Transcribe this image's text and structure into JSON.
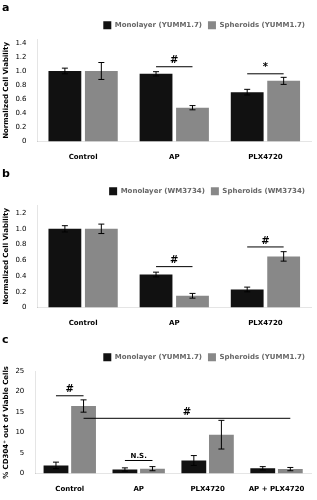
{
  "chart_data": [
    {
      "type": "bar",
      "title": "a",
      "categories": [
        "Control",
        "AP",
        "PLX4720"
      ],
      "series": [
        {
          "name": "Monolayer (YUMM1.7)",
          "color": "#111111",
          "values": [
            1.0,
            0.96,
            0.7
          ],
          "errors": [
            0.04,
            0.03,
            0.04
          ]
        },
        {
          "name": "Spheroids (YUMM1.7)",
          "color": "#888888",
          "values": [
            1.0,
            0.48,
            0.86
          ],
          "errors": [
            0.12,
            0.03,
            0.05
          ]
        }
      ],
      "ylabel": "Normalized Cell Viability",
      "ylim": [
        0,
        1.45
      ],
      "yticks": [
        0,
        0.2,
        0.4,
        0.6,
        0.8,
        {
          "value": 1.0,
          "label": "1.0"
        },
        1.2,
        1.4
      ],
      "grid": false,
      "legend": "upper right",
      "annotations": [
        {
          "text": "#",
          "category": "AP",
          "y": 1.06
        },
        {
          "text": "*",
          "category": "PLX4720",
          "y": 0.96
        }
      ]
    },
    {
      "type": "bar",
      "title": "b",
      "categories": [
        "Control",
        "AP",
        "PLX4720"
      ],
      "series": [
        {
          "name": "Monolayer (WM3734)",
          "color": "#111111",
          "values": [
            1.0,
            0.42,
            0.23
          ],
          "errors": [
            0.04,
            0.03,
            0.03
          ]
        },
        {
          "name": "Spheroids (WM3734)",
          "color": "#888888",
          "values": [
            1.0,
            0.15,
            0.65
          ],
          "errors": [
            0.06,
            0.03,
            0.06
          ]
        }
      ],
      "ylabel": "Normalized Cell Viability",
      "ylim": [
        0,
        1.3
      ],
      "yticks": [
        0,
        0.2,
        0.4,
        0.6,
        0.8,
        {
          "value": 1.0,
          "label": "1.0"
        },
        1.2
      ],
      "grid": false,
      "legend": "upper right",
      "annotations": [
        {
          "text": "#",
          "category": "AP",
          "y": 0.52
        },
        {
          "text": "#",
          "category": "PLX4720",
          "y": 0.77
        }
      ]
    },
    {
      "type": "bar",
      "title": "c",
      "categories": [
        "Control",
        "AP",
        "PLX4720",
        "AP + PLX4720"
      ],
      "series": [
        {
          "name": "Monolayer (YUMM1.7)",
          "color": "#111111",
          "values": [
            2.0,
            1.0,
            3.2,
            1.3
          ],
          "errors": [
            0.8,
            0.4,
            1.2,
            0.4
          ]
        },
        {
          "name": "Spheroids (YUMM1.7)",
          "color": "#888888",
          "values": [
            16.5,
            1.2,
            9.5,
            1.1
          ],
          "errors": [
            1.5,
            0.5,
            3.5,
            0.4
          ]
        }
      ],
      "ylabel": "% CD304⁺ out of Viable Cells",
      "ylim": [
        0,
        25
      ],
      "yticks": [
        0,
        5,
        10,
        15,
        20,
        25
      ],
      "grid": false,
      "legend": "upper right",
      "annotations": [
        {
          "text": "#",
          "category": "Control",
          "y": 19.0
        },
        {
          "text": "#",
          "from": "Control",
          "to": "AP + PLX4720",
          "series": "Spheroids (YUMM1.7)",
          "y": 13.5
        },
        {
          "text": "N.S.",
          "category": "AP",
          "y": 3.2
        }
      ]
    }
  ]
}
